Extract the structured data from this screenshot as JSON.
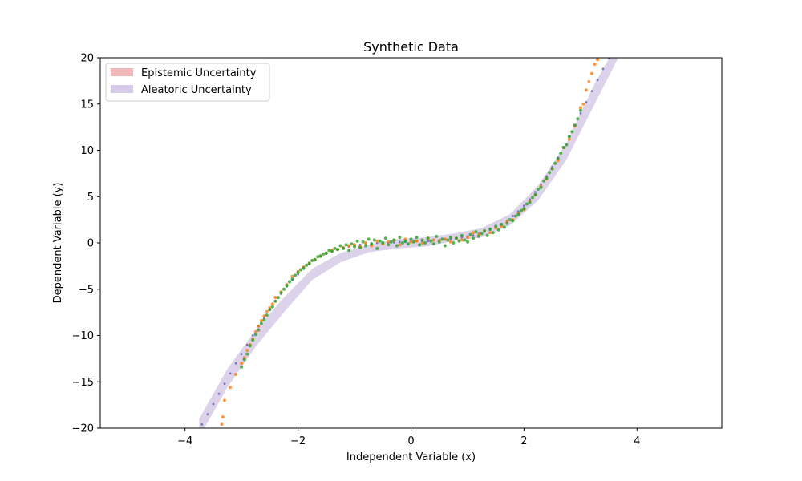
{
  "chart_data": {
    "type": "scatter",
    "title": "Synthetic Data",
    "xlabel": "Independent Variable (x)",
    "ylabel": "Dependent Variable (y)",
    "xlim": [
      -5.5,
      5.5
    ],
    "ylim": [
      -20,
      20
    ],
    "xticks": [
      -4,
      -2,
      0,
      2,
      4
    ],
    "yticks": [
      -20,
      -15,
      -10,
      -5,
      0,
      5,
      10,
      15,
      20
    ],
    "xtick_labels": [
      "−4",
      "−2",
      "0",
      "2",
      "4"
    ],
    "ytick_labels": [
      "−20",
      "−15",
      "−10",
      "−5",
      "0",
      "5",
      "10",
      "15",
      "20"
    ],
    "grid": false,
    "legend_position": "top-left",
    "legend": [
      {
        "label": "Epistemic Uncertainty",
        "color": "#f0b8b8"
      },
      {
        "label": "Aleatoric Uncertainty",
        "color": "#d6cbe8"
      }
    ],
    "colors": {
      "epistemic_band": "#f0b8b8",
      "aleatoric_band": "#d6cbe8",
      "prediction_points": "#6e6ab5",
      "orange_points": "#ff7f0e",
      "green_points": "#2ca02c"
    },
    "aleatoric_band": {
      "x": [
        -3.75,
        -3.25,
        -2.75,
        -2.25,
        -1.75,
        -1.25,
        -0.75,
        -0.25,
        0.25,
        0.75,
        1.25,
        1.75,
        2.25,
        2.75,
        3.25,
        3.65
      ],
      "lower": [
        -21.0,
        -15.6,
        -11.2,
        -7.5,
        -4.0,
        -2.1,
        -1.0,
        -0.6,
        -0.4,
        0.2,
        0.6,
        1.9,
        4.6,
        9.0,
        15.0,
        19.8
      ],
      "upper": [
        -19.0,
        -13.6,
        -9.4,
        -5.9,
        -2.8,
        -1.1,
        -0.2,
        0.4,
        0.6,
        1.0,
        1.6,
        3.1,
        6.2,
        10.8,
        17.2,
        21.5
      ]
    },
    "series": [
      {
        "name": "",
        "role": "prediction",
        "x": [
          -3.7,
          -3.6,
          -3.5,
          -3.4,
          -3.3,
          -3.2,
          -3.1,
          -3.0,
          -2.9,
          -2.8,
          -2.7,
          -2.6,
          -2.5,
          -2.4,
          -2.3,
          -2.2,
          -2.1,
          -2.0,
          -1.9,
          -1.8,
          -1.7,
          -1.6,
          -1.5,
          -1.4,
          -1.3,
          -1.2,
          -1.1,
          -1.0,
          -0.9,
          -0.8,
          -0.7,
          -0.6,
          -0.5,
          -0.4,
          -0.3,
          -0.2,
          -0.1,
          0.0,
          0.1,
          0.2,
          0.3,
          0.4,
          0.5,
          0.6,
          0.7,
          0.8,
          0.9,
          1.0,
          1.1,
          1.2,
          1.3,
          1.4,
          1.5,
          1.6,
          1.7,
          1.8,
          1.9,
          2.0,
          2.1,
          2.2,
          2.3,
          2.4,
          2.5,
          2.6,
          2.7,
          2.8,
          2.9,
          3.0,
          3.1,
          3.2,
          3.3,
          3.4,
          3.5
        ],
        "y": [
          -19.6,
          -18.5,
          -17.4,
          -16.3,
          -15.2,
          -14.1,
          -13.0,
          -12.0,
          -11.0,
          -10.0,
          -9.0,
          -8.1,
          -7.2,
          -6.3,
          -5.5,
          -4.7,
          -4.0,
          -3.4,
          -2.8,
          -2.3,
          -1.9,
          -1.5,
          -1.2,
          -0.9,
          -0.7,
          -0.5,
          -0.4,
          -0.3,
          -0.2,
          -0.1,
          -0.05,
          0.0,
          0.0,
          0.0,
          0.05,
          0.1,
          0.1,
          0.1,
          0.2,
          0.2,
          0.2,
          0.3,
          0.3,
          0.4,
          0.4,
          0.5,
          0.6,
          0.7,
          0.8,
          1.0,
          1.2,
          1.4,
          1.7,
          2.0,
          2.4,
          2.9,
          3.4,
          4.0,
          4.7,
          5.5,
          6.3,
          7.2,
          8.2,
          9.2,
          10.3,
          11.5,
          12.7,
          14.0,
          15.2,
          16.4,
          17.6,
          18.8,
          20.0
        ]
      },
      {
        "name": "",
        "role": "observations",
        "x": [
          -3.35,
          -3.33,
          -3.3,
          -3.2,
          -3.1,
          -3.0,
          -2.95,
          -2.9,
          -2.85,
          -2.8,
          -2.75,
          -2.7,
          -2.65,
          -2.6,
          -2.55,
          -2.5,
          -2.45,
          -2.4,
          -2.3,
          -2.2,
          -2.1,
          -2.0,
          -1.9,
          -1.8,
          -1.7,
          -1.6,
          -1.5,
          -1.4,
          -1.3,
          -1.2,
          -1.1,
          -1.0,
          -0.9,
          -0.8,
          -0.7,
          -0.6,
          -0.5,
          -0.4,
          -0.3,
          -0.2,
          -0.1,
          0.0,
          0.1,
          0.2,
          0.3,
          0.4,
          0.5,
          0.6,
          0.7,
          0.8,
          0.9,
          1.0,
          1.1,
          1.2,
          1.3,
          1.4,
          1.5,
          1.6,
          1.7,
          1.8,
          1.9,
          2.0,
          2.1,
          2.2,
          2.3,
          2.4,
          2.5,
          2.6,
          2.7,
          2.8,
          2.9,
          3.0,
          3.05,
          3.1,
          3.15,
          3.2,
          3.25,
          3.3
        ],
        "y": [
          -19.6,
          -18.8,
          -17.0,
          -15.6,
          -14.2,
          -13.0,
          -12.4,
          -11.6,
          -11.0,
          -10.4,
          -9.6,
          -9.0,
          -8.4,
          -7.9,
          -7.4,
          -7.0,
          -6.6,
          -5.9,
          -5.3,
          -4.5,
          -3.6,
          -3.1,
          -2.6,
          -2.2,
          -1.8,
          -1.4,
          -1.1,
          -0.8,
          -0.7,
          -0.5,
          -0.3,
          -0.2,
          -0.4,
          0.0,
          -0.3,
          0.2,
          -0.1,
          0.1,
          0.3,
          -0.2,
          0.4,
          0.1,
          0.2,
          0.0,
          0.5,
          0.3,
          0.2,
          0.4,
          0.1,
          0.5,
          0.3,
          0.6,
          1.1,
          0.9,
          1.3,
          1.1,
          1.6,
          1.8,
          2.3,
          2.5,
          3.2,
          3.6,
          4.5,
          5.2,
          6.1,
          6.9,
          8.0,
          8.9,
          10.3,
          11.2,
          12.6,
          14.6,
          15.0,
          16.5,
          17.4,
          18.3,
          19.3,
          19.8
        ]
      },
      {
        "name": "",
        "role": "observations",
        "x": [
          -3.0,
          -2.95,
          -2.9,
          -2.85,
          -2.8,
          -2.75,
          -2.7,
          -2.65,
          -2.6,
          -2.55,
          -2.5,
          -2.45,
          -2.4,
          -2.35,
          -2.3,
          -2.25,
          -2.2,
          -2.15,
          -2.1,
          -2.05,
          -2.0,
          -1.95,
          -1.9,
          -1.85,
          -1.8,
          -1.75,
          -1.7,
          -1.65,
          -1.6,
          -1.55,
          -1.5,
          -1.45,
          -1.4,
          -1.35,
          -1.3,
          -1.25,
          -1.2,
          -1.15,
          -1.1,
          -1.05,
          -1.0,
          -0.95,
          -0.9,
          -0.85,
          -0.8,
          -0.75,
          -0.7,
          -0.65,
          -0.6,
          -0.55,
          -0.5,
          -0.45,
          -0.4,
          -0.35,
          -0.3,
          -0.25,
          -0.2,
          -0.15,
          -0.1,
          -0.05,
          0.0,
          0.05,
          0.1,
          0.15,
          0.2,
          0.25,
          0.3,
          0.35,
          0.4,
          0.45,
          0.5,
          0.55,
          0.6,
          0.65,
          0.7,
          0.75,
          0.8,
          0.85,
          0.9,
          0.95,
          1.0,
          1.05,
          1.1,
          1.15,
          1.2,
          1.25,
          1.3,
          1.35,
          1.4,
          1.45,
          1.5,
          1.55,
          1.6,
          1.65,
          1.7,
          1.75,
          1.8,
          1.85,
          1.9,
          1.95,
          2.0,
          2.05,
          2.1,
          2.15,
          2.2,
          2.25,
          2.3,
          2.35,
          2.4,
          2.45,
          2.5,
          2.55,
          2.6,
          2.65,
          2.7,
          2.75,
          2.8,
          2.85,
          2.9,
          2.95,
          3.0
        ],
        "y": [
          -13.4,
          -12.6,
          -12.0,
          -11.1,
          -10.5,
          -9.9,
          -9.4,
          -8.7,
          -8.3,
          -7.8,
          -7.2,
          -6.9,
          -6.3,
          -5.9,
          -5.4,
          -5.0,
          -4.6,
          -4.2,
          -3.9,
          -3.5,
          -3.2,
          -2.9,
          -2.7,
          -2.4,
          -2.2,
          -1.9,
          -1.8,
          -1.5,
          -1.4,
          -1.2,
          -1.1,
          -0.8,
          -0.9,
          -0.6,
          -0.7,
          -0.3,
          -0.6,
          -0.2,
          -0.8,
          -0.1,
          -0.4,
          0.2,
          -0.5,
          0.1,
          -0.3,
          0.4,
          -0.1,
          0.3,
          -0.6,
          0.2,
          0.0,
          0.5,
          -0.2,
          0.1,
          0.3,
          -0.3,
          0.6,
          0.0,
          0.2,
          -0.1,
          0.4,
          0.1,
          0.6,
          -0.2,
          0.3,
          0.0,
          0.5,
          0.2,
          -0.1,
          0.7,
          0.1,
          0.4,
          -0.3,
          0.3,
          0.6,
          0.0,
          0.5,
          0.2,
          0.8,
          0.3,
          0.1,
          0.9,
          0.5,
          1.2,
          0.7,
          1.0,
          1.3,
          0.8,
          1.5,
          1.1,
          1.8,
          1.4,
          2.0,
          1.7,
          2.1,
          2.5,
          2.4,
          2.9,
          3.1,
          3.5,
          3.7,
          4.2,
          4.4,
          4.9,
          5.2,
          5.8,
          6.0,
          6.7,
          7.0,
          7.6,
          8.0,
          8.6,
          9.1,
          9.7,
          10.3,
          10.6,
          11.5,
          12.0,
          12.7,
          13.4,
          14.3
        ]
      }
    ]
  }
}
